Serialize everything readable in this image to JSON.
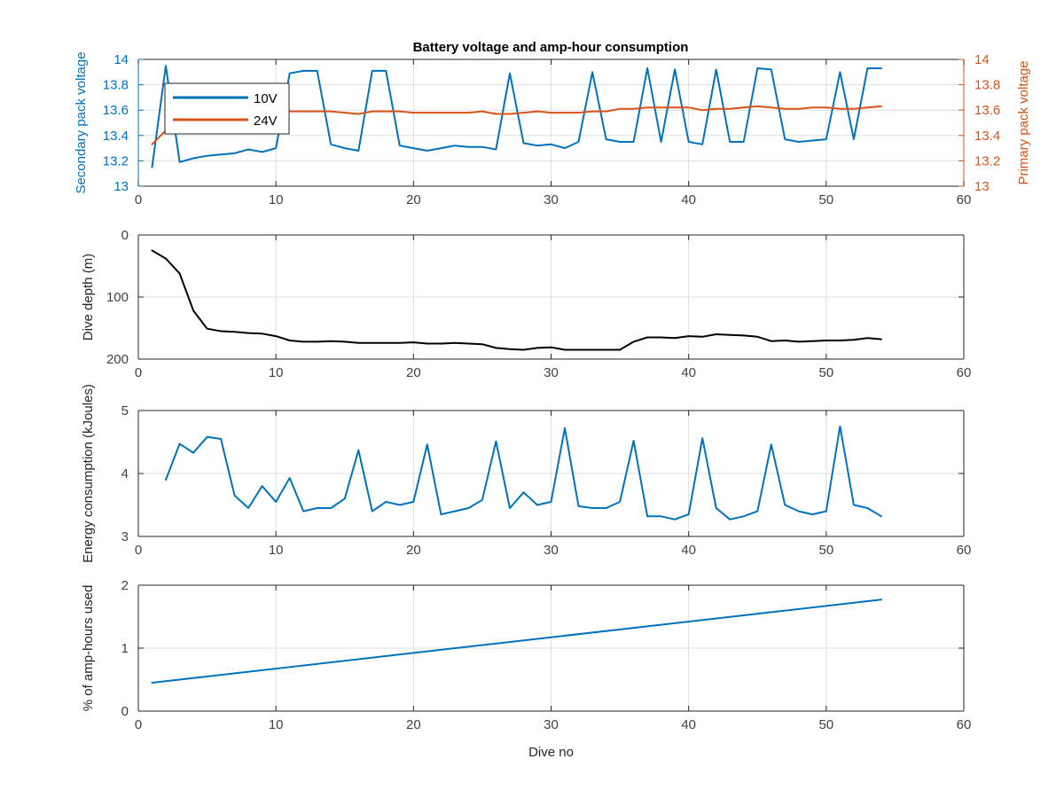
{
  "figure": {
    "title": "Battery voltage and amp-hour consumption"
  },
  "colors": {
    "blue": "#0072BD",
    "orange": "#D95319",
    "black": "#000000",
    "grid": "#dfdfdf",
    "axis": "#262626"
  },
  "chart_data": [
    {
      "type": "line",
      "title": "Battery voltage and amp-hour consumption",
      "xlabel": "",
      "ylabel": "Secondary pack voltage",
      "ylabel_right": "Primary pack voltage",
      "xlim": [
        0,
        60
      ],
      "ylim": [
        13,
        14
      ],
      "ylim_right": [
        13,
        14
      ],
      "xticks": [
        "0",
        "10",
        "20",
        "30",
        "40",
        "50",
        "60"
      ],
      "yticks": [
        "13",
        "13.2",
        "13.4",
        "13.6",
        "13.8",
        "14"
      ],
      "yticks_right": [
        "13",
        "13.2",
        "13.4",
        "13.6",
        "13.8",
        "14"
      ],
      "grid": true,
      "legend": {
        "placement": "top-left",
        "entries": [
          "10V",
          "24V"
        ]
      },
      "x": [
        1,
        2,
        3,
        4,
        5,
        6,
        7,
        8,
        9,
        10,
        11,
        12,
        13,
        14,
        15,
        16,
        17,
        18,
        19,
        20,
        21,
        22,
        23,
        24,
        25,
        26,
        27,
        28,
        29,
        30,
        31,
        32,
        33,
        34,
        35,
        36,
        37,
        38,
        39,
        40,
        41,
        42,
        43,
        44,
        45,
        46,
        47,
        48,
        49,
        50,
        51,
        52,
        53,
        54
      ],
      "series": [
        {
          "name": "10V",
          "axis": "left",
          "color": "#0072BD",
          "values": [
            13.15,
            13.95,
            13.19,
            13.22,
            13.24,
            13.25,
            13.26,
            13.29,
            13.27,
            13.3,
            13.89,
            13.91,
            13.91,
            13.33,
            13.3,
            13.28,
            13.91,
            13.91,
            13.32,
            13.3,
            13.28,
            13.3,
            13.32,
            13.31,
            13.31,
            13.29,
            13.89,
            13.34,
            13.32,
            13.33,
            13.3,
            13.35,
            13.9,
            13.37,
            13.35,
            13.35,
            13.93,
            13.35,
            13.92,
            13.35,
            13.33,
            13.92,
            13.35,
            13.35,
            13.93,
            13.92,
            13.37,
            13.35,
            13.36,
            13.37,
            13.9,
            13.37,
            13.93,
            13.93
          ]
        },
        {
          "name": "24V",
          "axis": "right",
          "color": "#D95319",
          "values": [
            13.33,
            13.44,
            13.52,
            13.55,
            13.56,
            13.57,
            13.57,
            13.57,
            13.58,
            13.58,
            13.59,
            13.59,
            13.59,
            13.59,
            13.58,
            13.57,
            13.59,
            13.59,
            13.59,
            13.58,
            13.58,
            13.58,
            13.58,
            13.58,
            13.59,
            13.57,
            13.57,
            13.58,
            13.59,
            13.58,
            13.58,
            13.58,
            13.59,
            13.59,
            13.61,
            13.61,
            13.62,
            13.62,
            13.62,
            13.62,
            13.6,
            13.61,
            13.61,
            13.62,
            13.63,
            13.62,
            13.61,
            13.61,
            13.62,
            13.62,
            13.61,
            13.61,
            13.62,
            13.63
          ]
        }
      ]
    },
    {
      "type": "line",
      "xlabel": "",
      "ylabel": "Dive depth (m)",
      "xlim": [
        0,
        60
      ],
      "ylim": [
        0,
        200
      ],
      "y_reversed": true,
      "xticks": [
        "0",
        "10",
        "20",
        "30",
        "40",
        "50",
        "60"
      ],
      "yticks": [
        "0",
        "100",
        "200"
      ],
      "grid": true,
      "x": [
        1,
        2,
        3,
        4,
        5,
        6,
        7,
        8,
        9,
        10,
        11,
        12,
        13,
        14,
        15,
        16,
        17,
        18,
        19,
        20,
        21,
        22,
        23,
        24,
        25,
        26,
        27,
        28,
        29,
        30,
        31,
        32,
        33,
        34,
        35,
        36,
        37,
        38,
        39,
        40,
        41,
        42,
        43,
        44,
        45,
        46,
        47,
        48,
        49,
        50,
        51,
        52,
        53,
        54
      ],
      "series": [
        {
          "color": "#000000",
          "values": [
            25,
            38,
            62,
            122,
            151,
            155,
            156,
            158,
            159,
            163,
            170,
            172,
            172,
            171,
            172,
            174,
            174,
            174,
            174,
            173,
            175,
            175,
            174,
            175,
            176,
            182,
            184,
            185,
            182,
            181,
            185,
            185,
            185,
            185,
            185,
            172,
            165,
            165,
            166,
            163,
            164,
            160,
            161,
            162,
            164,
            171,
            170,
            172,
            171,
            170,
            170,
            169,
            166,
            168
          ]
        }
      ]
    },
    {
      "type": "line",
      "xlabel": "",
      "ylabel": "Energy consumption (kJoules)",
      "xlim": [
        0,
        60
      ],
      "ylim": [
        3,
        5
      ],
      "xticks": [
        "0",
        "10",
        "20",
        "30",
        "40",
        "50",
        "60"
      ],
      "yticks": [
        "3",
        "4",
        "5"
      ],
      "grid": true,
      "x": [
        2,
        3,
        4,
        5,
        6,
        7,
        8,
        9,
        10,
        11,
        12,
        13,
        14,
        15,
        16,
        17,
        18,
        19,
        20,
        21,
        22,
        23,
        24,
        25,
        26,
        27,
        28,
        29,
        30,
        31,
        32,
        33,
        34,
        35,
        36,
        37,
        38,
        39,
        40,
        41,
        42,
        43,
        44,
        45,
        46,
        47,
        48,
        49,
        50,
        51,
        52,
        53,
        54
      ],
      "series": [
        {
          "color": "#0072BD",
          "values": [
            3.9,
            4.47,
            4.33,
            4.58,
            4.55,
            3.65,
            3.45,
            3.8,
            3.55,
            3.93,
            3.4,
            3.45,
            3.45,
            3.6,
            4.37,
            3.4,
            3.55,
            3.5,
            3.55,
            4.46,
            3.35,
            3.4,
            3.45,
            3.58,
            4.51,
            3.45,
            3.7,
            3.5,
            3.55,
            4.72,
            3.48,
            3.45,
            3.45,
            3.55,
            4.52,
            3.32,
            3.32,
            3.27,
            3.35,
            4.56,
            3.45,
            3.27,
            3.32,
            3.4,
            4.46,
            3.5,
            3.4,
            3.35,
            3.4,
            4.75,
            3.5,
            3.45,
            3.32
          ]
        }
      ]
    },
    {
      "type": "line",
      "xlabel": "Dive no",
      "ylabel": "% of amp-hours used",
      "xlim": [
        0,
        60
      ],
      "ylim": [
        0,
        2
      ],
      "xticks": [
        "0",
        "10",
        "20",
        "30",
        "40",
        "50",
        "60"
      ],
      "yticks": [
        "0",
        "1",
        "2"
      ],
      "grid": true,
      "x": [
        1,
        54
      ],
      "series": [
        {
          "color": "#0072BD",
          "values": [
            0.45,
            1.77
          ]
        }
      ]
    }
  ]
}
